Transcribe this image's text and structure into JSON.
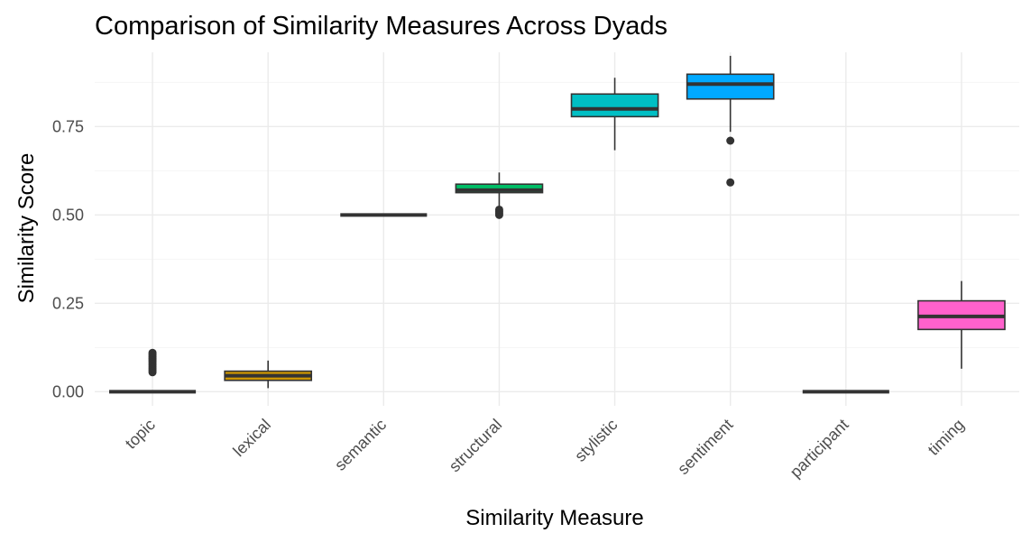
{
  "chart_data": {
    "type": "boxplot",
    "title": "Comparison of Similarity Measures Across Dyads",
    "xlabel": "Similarity Measure",
    "ylabel": "Similarity Score",
    "ylim": [
      -0.04,
      0.96
    ],
    "yticks": [
      0.0,
      0.25,
      0.5,
      0.75
    ],
    "ytick_labels": [
      "0.00",
      "0.25",
      "0.50",
      "0.75"
    ],
    "grid": true,
    "legend": "none",
    "categories": [
      "topic",
      "lexical",
      "semantic",
      "structural",
      "stylistic",
      "sentiment",
      "participant",
      "timing"
    ],
    "boxes": [
      {
        "category": "topic",
        "color": "#F8766D",
        "min": 0.0,
        "q1": 0.0,
        "median": 0.0,
        "q3": 0.0,
        "max": 0.0,
        "outliers": [
          0.055,
          0.06,
          0.065,
          0.07,
          0.075,
          0.08,
          0.085,
          0.09,
          0.095,
          0.1,
          0.105,
          0.11
        ]
      },
      {
        "category": "lexical",
        "color": "#CD9600",
        "min": 0.01,
        "q1": 0.032,
        "median": 0.045,
        "q3": 0.058,
        "max": 0.088,
        "outliers": []
      },
      {
        "category": "semantic",
        "color": "#7CAE00",
        "min": 0.5,
        "q1": 0.5,
        "median": 0.5,
        "q3": 0.5,
        "max": 0.5,
        "outliers": []
      },
      {
        "category": "structural",
        "color": "#00BE67",
        "min": 0.5,
        "q1": 0.563,
        "median": 0.57,
        "q3": 0.587,
        "max": 0.62,
        "outliers": [
          0.5,
          0.505,
          0.51,
          0.515
        ]
      },
      {
        "category": "stylistic",
        "color": "#00BFC4",
        "min": 0.683,
        "q1": 0.778,
        "median": 0.8,
        "q3": 0.842,
        "max": 0.888,
        "outliers": []
      },
      {
        "category": "sentiment",
        "color": "#00A9FF",
        "min": 0.735,
        "q1": 0.828,
        "median": 0.87,
        "q3": 0.898,
        "max": 0.95,
        "outliers": [
          0.71,
          0.592
        ]
      },
      {
        "category": "participant",
        "color": "#C77CFF",
        "min": 0.0,
        "q1": 0.0,
        "median": 0.0,
        "q3": 0.0,
        "max": 0.0,
        "outliers": []
      },
      {
        "category": "timing",
        "color": "#FF61CC",
        "min": 0.065,
        "q1": 0.176,
        "median": 0.213,
        "q3": 0.257,
        "max": 0.313,
        "outliers": []
      }
    ]
  }
}
